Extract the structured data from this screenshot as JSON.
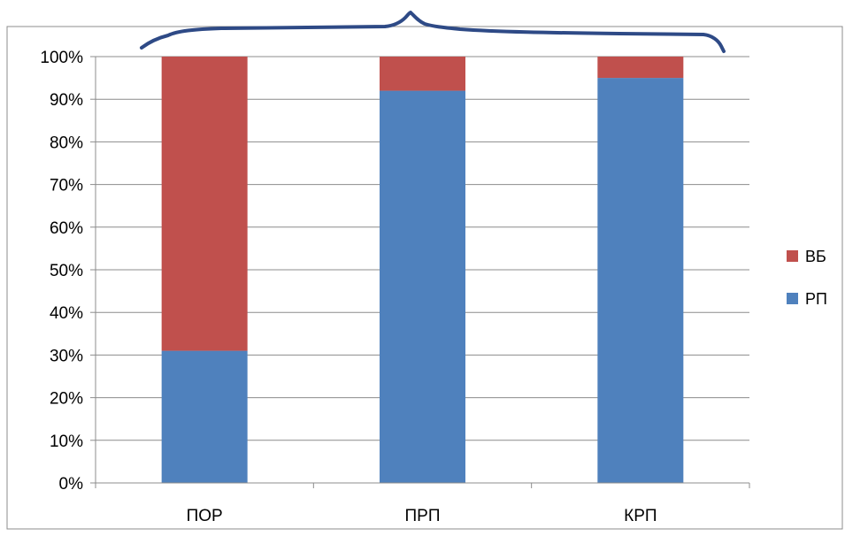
{
  "chart_data": {
    "type": "bar",
    "stacked": true,
    "percent_stacked": true,
    "categories": [
      "ПОР",
      "ПРП",
      "КРП"
    ],
    "series": [
      {
        "name": "РП",
        "color": "#4F81BD",
        "values": [
          31,
          92,
          95
        ]
      },
      {
        "name": "ВБ",
        "color": "#C0504D",
        "values": [
          69,
          8,
          5
        ]
      }
    ],
    "y_ticks": [
      "0%",
      "10%",
      "20%",
      "30%",
      "40%",
      "50%",
      "60%",
      "70%",
      "80%",
      "90%",
      "100%"
    ],
    "ylim": [
      0,
      100
    ],
    "grid": true,
    "legend_position": "right",
    "legend_order": [
      "ВБ",
      "РП"
    ],
    "annotation": {
      "kind": "hand-drawn-brace",
      "color": "#2E4A86"
    }
  }
}
